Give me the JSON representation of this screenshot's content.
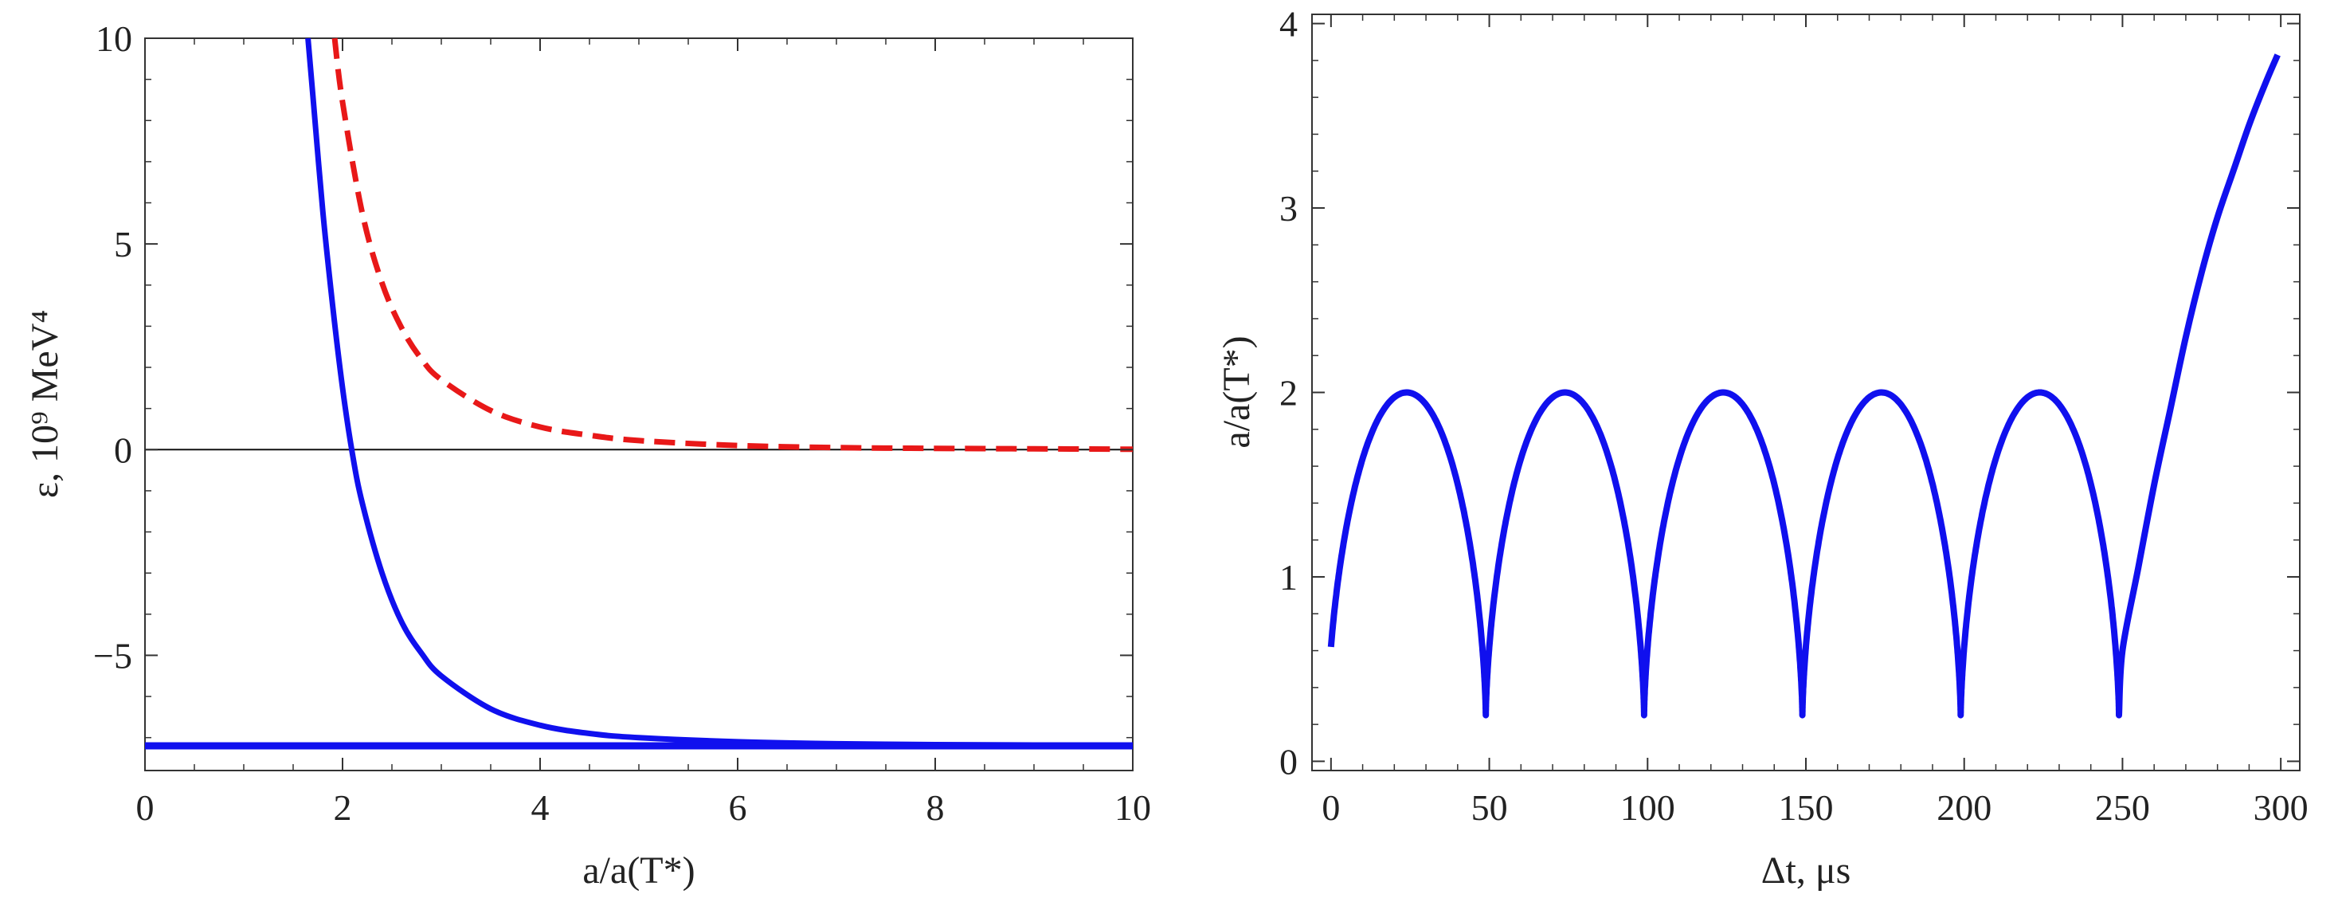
{
  "chart_data": [
    {
      "type": "line",
      "xlabel": "a/a(T*)",
      "ylabel": "ε, 10⁹ MeV⁴",
      "xlim": [
        0,
        10
      ],
      "ylim": [
        -7.8,
        10
      ],
      "xticks": [
        0,
        2,
        4,
        6,
        8,
        10
      ],
      "yticks": [
        -5,
        0,
        5,
        10
      ],
      "ytick_labels": [
        "−5",
        "0",
        "5",
        "10"
      ],
      "zero_line": true,
      "colors": {
        "solid": "#1010ee",
        "dashed": "#e81818",
        "zero": "#111111"
      },
      "series": [
        {
          "style": "solid",
          "color": "#1010ee",
          "x": [
            1.65,
            1.7,
            1.8,
            1.9,
            2.0,
            2.1,
            2.2,
            2.4,
            2.6,
            2.8,
            3.0,
            3.5,
            4.0,
            4.5,
            5.0,
            6.0,
            7.0,
            8.0,
            9.0,
            10.0
          ],
          "y": [
            10.0,
            8.6,
            5.8,
            3.5,
            1.5,
            -0.1,
            -1.3,
            -3.0,
            -4.2,
            -4.95,
            -5.5,
            -6.3,
            -6.7,
            -6.9,
            -7.0,
            -7.1,
            -7.15,
            -7.17,
            -7.18,
            -7.19
          ]
        },
        {
          "style": "dashed",
          "color": "#e81818",
          "x": [
            1.92,
            2.0,
            2.2,
            2.4,
            2.6,
            2.8,
            3.0,
            3.5,
            4.0,
            4.5,
            5.0,
            6.0,
            7.0,
            8.0,
            9.0,
            10.0
          ],
          "y": [
            10.0,
            8.45,
            5.75,
            4.05,
            2.95,
            2.2,
            1.7,
            0.95,
            0.55,
            0.35,
            0.22,
            0.1,
            0.05,
            0.03,
            0.02,
            0.01
          ]
        },
        {
          "style": "solid-thick",
          "color": "#1010ee",
          "x": [
            0,
            10
          ],
          "y": [
            -7.2,
            -7.2
          ]
        }
      ]
    },
    {
      "type": "line",
      "xlabel": "Δt, μs",
      "ylabel": "a/a(T*)",
      "xlim": [
        -6,
        306
      ],
      "ylim": [
        -0.05,
        4.05
      ],
      "xticks": [
        0,
        50,
        100,
        150,
        200,
        250,
        300
      ],
      "yticks": [
        0,
        1,
        2,
        3,
        4
      ],
      "colors": {
        "line": "#1010ee"
      },
      "series": [
        {
          "color": "#1010ee",
          "oscillation": {
            "max": 2.0,
            "min": 0.25,
            "period": 50,
            "start_value": 0.62,
            "end_time": 247
          },
          "final_rise": {
            "x": [
              247,
              250,
              255,
              260,
              265,
              270,
              275,
              280,
              285,
              290,
              295,
              299
            ],
            "y": [
              0.25,
              0.6,
              1.05,
              1.5,
              1.9,
              2.3,
              2.65,
              2.95,
              3.2,
              3.45,
              3.67,
              3.83
            ]
          }
        }
      ]
    }
  ]
}
